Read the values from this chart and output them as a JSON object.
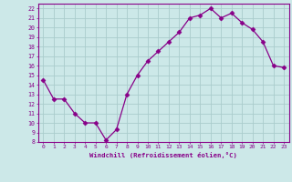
{
  "x": [
    0,
    1,
    2,
    3,
    4,
    5,
    6,
    7,
    8,
    9,
    10,
    11,
    12,
    13,
    14,
    15,
    16,
    17,
    18,
    19,
    20,
    21,
    22,
    23
  ],
  "y": [
    14.5,
    12.5,
    12.5,
    11.0,
    10.0,
    10.0,
    8.2,
    9.3,
    13.0,
    15.0,
    16.5,
    17.5,
    18.5,
    19.5,
    21.0,
    21.3,
    22.0,
    21.0,
    21.5,
    20.5,
    19.8,
    18.5,
    16.0,
    15.8
  ],
  "line_color": "#880088",
  "marker": "D",
  "marker_size": 2.5,
  "bg_color": "#cce8e8",
  "grid_color": "#aacccc",
  "xlabel": "Windchill (Refroidissement éolien,°C)",
  "ylabel": "",
  "ylim": [
    8,
    22.5
  ],
  "xlim": [
    -0.5,
    23.5
  ],
  "yticks": [
    8,
    9,
    10,
    11,
    12,
    13,
    14,
    15,
    16,
    17,
    18,
    19,
    20,
    21,
    22
  ],
  "xticks": [
    0,
    1,
    2,
    3,
    4,
    5,
    6,
    7,
    8,
    9,
    10,
    11,
    12,
    13,
    14,
    15,
    16,
    17,
    18,
    19,
    20,
    21,
    22,
    23
  ],
  "tick_color": "#880088",
  "label_color": "#880088",
  "axis_color": "#880088"
}
